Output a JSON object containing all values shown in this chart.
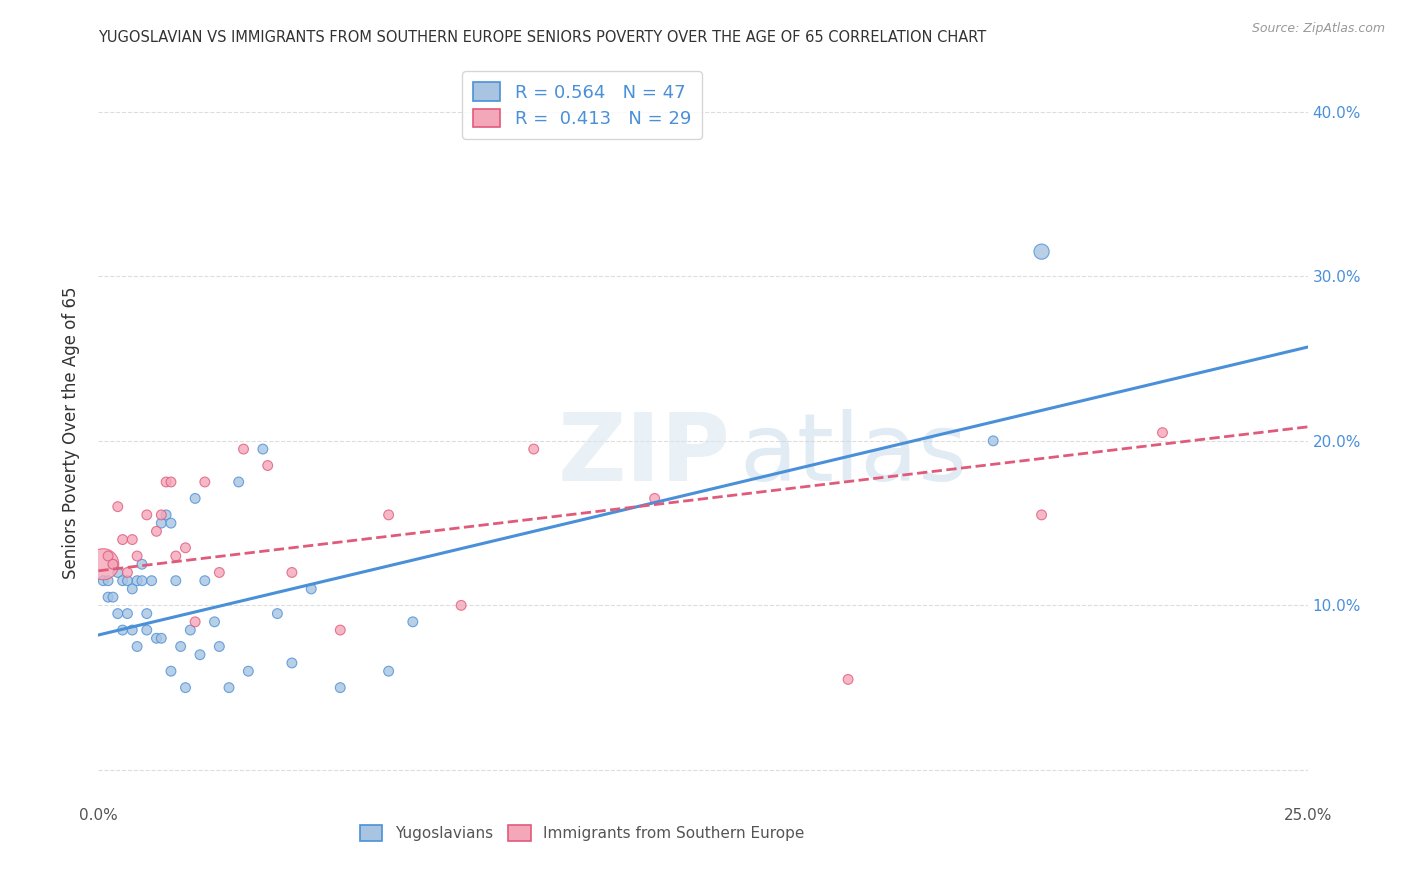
{
  "title": "YUGOSLAVIAN VS IMMIGRANTS FROM SOUTHERN EUROPE SENIORS POVERTY OVER THE AGE OF 65 CORRELATION CHART",
  "source": "Source: ZipAtlas.com",
  "ylabel": "Seniors Poverty Over the Age of 65",
  "xlim": [
    0.0,
    0.25
  ],
  "ylim": [
    -0.02,
    0.43
  ],
  "yticks": [
    0.0,
    0.1,
    0.2,
    0.3,
    0.4
  ],
  "xticks": [
    0.0,
    0.05,
    0.1,
    0.15,
    0.2,
    0.25
  ],
  "xtick_labels": [
    "0.0%",
    "",
    "",
    "",
    "",
    "25.0%"
  ],
  "ytick_labels_right": [
    "",
    "10.0%",
    "20.0%",
    "30.0%",
    "40.0%"
  ],
  "r_blue": 0.564,
  "n_blue": 47,
  "r_pink": 0.413,
  "n_pink": 29,
  "blue_color": "#a8c4e0",
  "blue_line_color": "#4a90d9",
  "pink_color": "#f4a7b9",
  "pink_line_color": "#e05a7a",
  "blue_scatter": {
    "x": [
      0.001,
      0.002,
      0.002,
      0.003,
      0.003,
      0.004,
      0.004,
      0.005,
      0.005,
      0.006,
      0.006,
      0.007,
      0.007,
      0.008,
      0.008,
      0.009,
      0.009,
      0.01,
      0.01,
      0.011,
      0.012,
      0.013,
      0.013,
      0.014,
      0.015,
      0.015,
      0.016,
      0.017,
      0.018,
      0.019,
      0.02,
      0.021,
      0.022,
      0.024,
      0.025,
      0.027,
      0.029,
      0.031,
      0.034,
      0.037,
      0.04,
      0.044,
      0.05,
      0.06,
      0.065,
      0.185,
      0.195
    ],
    "y": [
      0.115,
      0.115,
      0.105,
      0.125,
      0.105,
      0.095,
      0.12,
      0.115,
      0.085,
      0.115,
      0.095,
      0.085,
      0.11,
      0.115,
      0.075,
      0.125,
      0.115,
      0.095,
      0.085,
      0.115,
      0.08,
      0.15,
      0.08,
      0.155,
      0.15,
      0.06,
      0.115,
      0.075,
      0.05,
      0.085,
      0.165,
      0.07,
      0.115,
      0.09,
      0.075,
      0.05,
      0.175,
      0.06,
      0.195,
      0.095,
      0.065,
      0.11,
      0.05,
      0.06,
      0.09,
      0.2,
      0.315
    ],
    "sizes": [
      50,
      50,
      50,
      50,
      50,
      50,
      50,
      50,
      50,
      50,
      50,
      50,
      50,
      50,
      50,
      50,
      50,
      50,
      50,
      50,
      50,
      50,
      50,
      50,
      50,
      50,
      50,
      50,
      50,
      50,
      50,
      50,
      50,
      50,
      50,
      50,
      50,
      50,
      50,
      50,
      50,
      50,
      50,
      50,
      50,
      50,
      120
    ]
  },
  "pink_scatter": {
    "x": [
      0.001,
      0.002,
      0.003,
      0.004,
      0.005,
      0.006,
      0.007,
      0.008,
      0.01,
      0.012,
      0.013,
      0.014,
      0.015,
      0.016,
      0.018,
      0.02,
      0.022,
      0.025,
      0.03,
      0.035,
      0.04,
      0.05,
      0.06,
      0.075,
      0.09,
      0.115,
      0.155,
      0.195,
      0.22
    ],
    "y": [
      0.125,
      0.13,
      0.125,
      0.16,
      0.14,
      0.12,
      0.14,
      0.13,
      0.155,
      0.145,
      0.155,
      0.175,
      0.175,
      0.13,
      0.135,
      0.09,
      0.175,
      0.12,
      0.195,
      0.185,
      0.12,
      0.085,
      0.155,
      0.1,
      0.195,
      0.165,
      0.055,
      0.155,
      0.205
    ],
    "sizes": [
      500,
      50,
      50,
      50,
      50,
      50,
      50,
      50,
      50,
      50,
      50,
      50,
      50,
      50,
      50,
      50,
      50,
      50,
      50,
      50,
      50,
      50,
      50,
      50,
      50,
      50,
      50,
      50,
      50
    ]
  },
  "blue_line_y_intercept": 0.082,
  "blue_line_slope": 0.7,
  "pink_line_y_intercept": 0.121,
  "pink_line_slope": 0.35,
  "background_color": "#ffffff",
  "grid_color": "#dddddd"
}
